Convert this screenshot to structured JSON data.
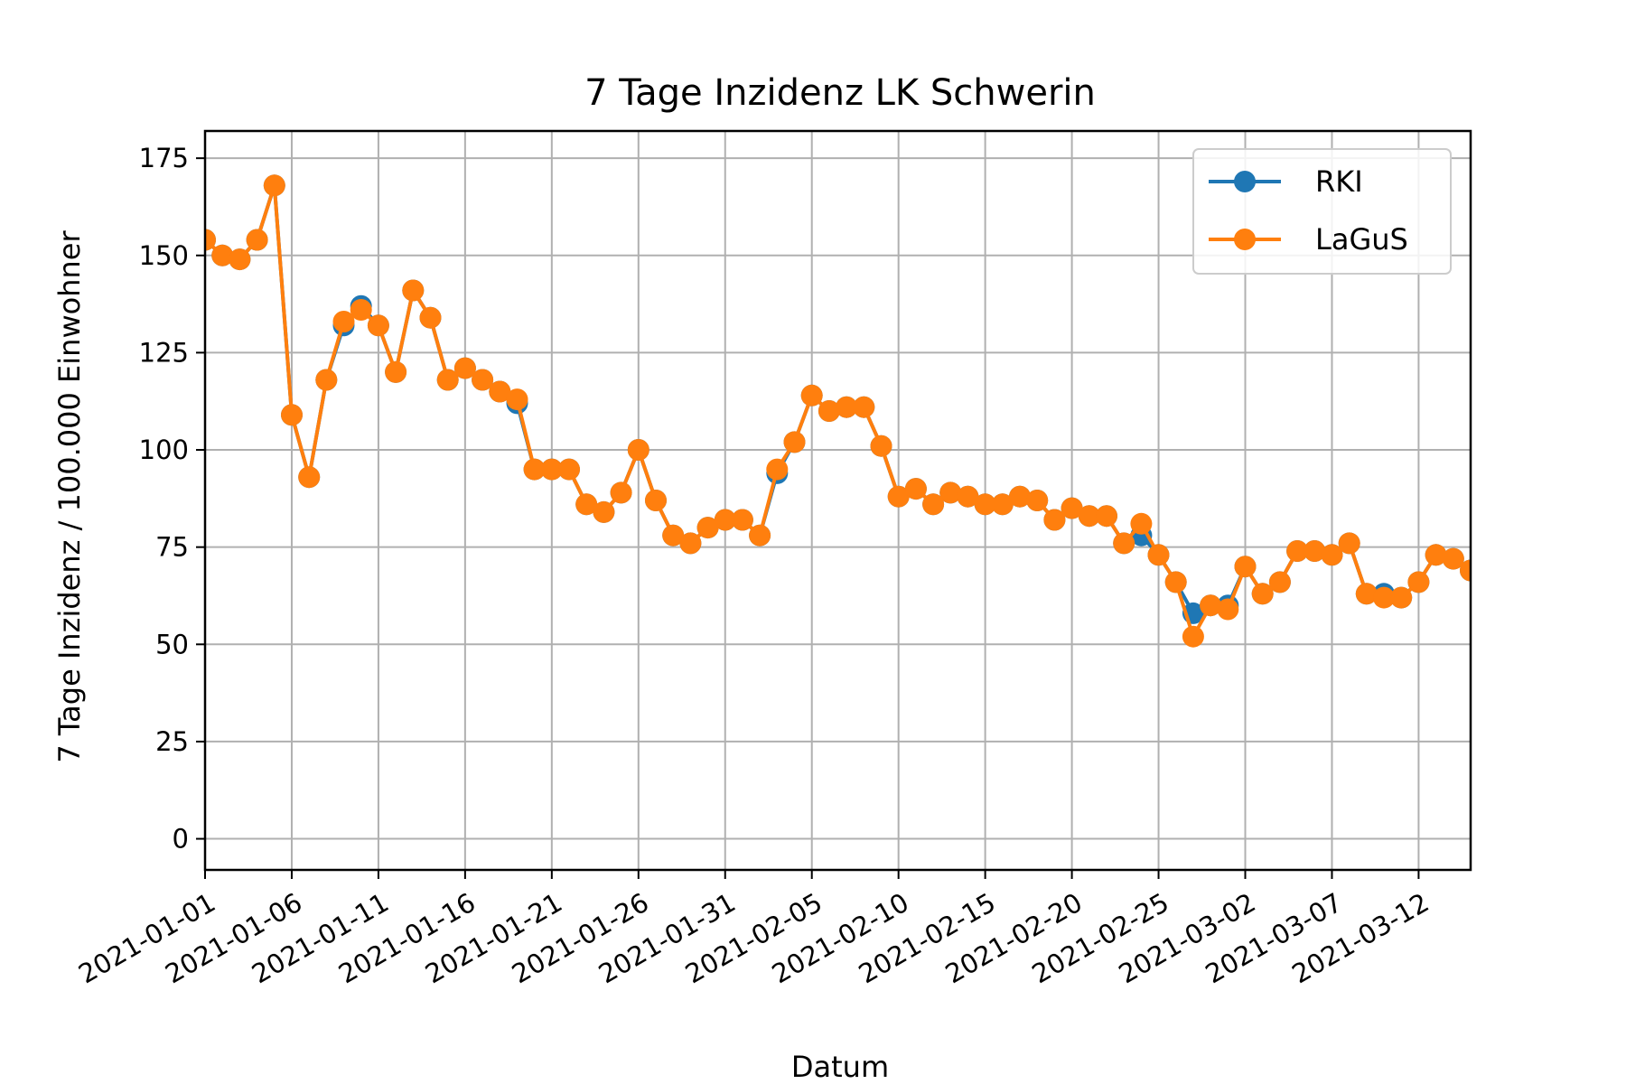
{
  "chart_data": {
    "type": "line",
    "title": "7 Tage Inzidenz LK Schwerin",
    "xlabel": "Datum",
    "ylabel": "7 Tage Inzidenz / 100.000 Einwohner",
    "ylim": [
      -8,
      182
    ],
    "xlim": [
      "2021-01-01",
      "2021-03-15"
    ],
    "y_ticks": [
      0,
      25,
      50,
      75,
      100,
      125,
      150,
      175
    ],
    "x_ticks": [
      "2021-01-01",
      "2021-01-06",
      "2021-01-11",
      "2021-01-16",
      "2021-01-21",
      "2021-01-26",
      "2021-01-31",
      "2021-02-05",
      "2021-02-10",
      "2021-02-15",
      "2021-02-20",
      "2021-02-25",
      "2021-03-02",
      "2021-03-07",
      "2021-03-12"
    ],
    "grid": true,
    "legend_position": "top-right",
    "x": [
      "2021-01-01",
      "2021-01-02",
      "2021-01-03",
      "2021-01-04",
      "2021-01-05",
      "2021-01-06",
      "2021-01-07",
      "2021-01-08",
      "2021-01-09",
      "2021-01-10",
      "2021-01-11",
      "2021-01-12",
      "2021-01-13",
      "2021-01-14",
      "2021-01-15",
      "2021-01-16",
      "2021-01-17",
      "2021-01-18",
      "2021-01-19",
      "2021-01-20",
      "2021-01-21",
      "2021-01-22",
      "2021-01-23",
      "2021-01-24",
      "2021-01-25",
      "2021-01-26",
      "2021-01-27",
      "2021-01-28",
      "2021-01-29",
      "2021-01-30",
      "2021-01-31",
      "2021-02-01",
      "2021-02-02",
      "2021-02-03",
      "2021-02-04",
      "2021-02-05",
      "2021-02-06",
      "2021-02-07",
      "2021-02-08",
      "2021-02-09",
      "2021-02-10",
      "2021-02-11",
      "2021-02-12",
      "2021-02-13",
      "2021-02-14",
      "2021-02-15",
      "2021-02-16",
      "2021-02-17",
      "2021-02-18",
      "2021-02-19",
      "2021-02-20",
      "2021-02-21",
      "2021-02-22",
      "2021-02-23",
      "2021-02-24",
      "2021-02-25",
      "2021-02-26",
      "2021-02-27",
      "2021-02-28",
      "2021-03-01",
      "2021-03-02",
      "2021-03-03",
      "2021-03-04",
      "2021-03-05",
      "2021-03-06",
      "2021-03-07",
      "2021-03-08",
      "2021-03-09",
      "2021-03-10",
      "2021-03-11",
      "2021-03-12",
      "2021-03-13",
      "2021-03-14",
      "2021-03-15"
    ],
    "series": [
      {
        "name": "RKI",
        "color": "#1f77b4",
        "values": [
          154,
          150,
          149,
          154,
          168,
          109,
          93,
          118,
          132,
          137,
          132,
          120,
          141,
          134,
          118,
          121,
          118,
          115,
          112,
          95,
          95,
          95,
          86,
          84,
          89,
          100,
          87,
          78,
          76,
          80,
          82,
          82,
          78,
          94,
          102,
          114,
          110,
          111,
          111,
          101,
          88,
          90,
          86,
          89,
          88,
          86,
          86,
          88,
          87,
          82,
          85,
          83,
          83,
          76,
          78,
          73,
          66,
          58,
          60,
          60,
          70,
          63,
          66,
          74,
          74,
          73,
          76,
          63,
          63,
          62,
          66,
          73,
          72,
          69
        ]
      },
      {
        "name": "LaGuS",
        "color": "#ff7f0e",
        "values": [
          154,
          150,
          149,
          154,
          168,
          109,
          93,
          118,
          133,
          136,
          132,
          120,
          141,
          134,
          118,
          121,
          118,
          115,
          113,
          95,
          95,
          95,
          86,
          84,
          89,
          100,
          87,
          78,
          76,
          80,
          82,
          82,
          78,
          95,
          102,
          114,
          110,
          111,
          111,
          101,
          88,
          90,
          86,
          89,
          88,
          86,
          86,
          88,
          87,
          82,
          85,
          83,
          83,
          76,
          81,
          73,
          66,
          52,
          60,
          59,
          70,
          63,
          66,
          74,
          74,
          73,
          76,
          63,
          62,
          62,
          66,
          73,
          72,
          69
        ]
      }
    ]
  }
}
